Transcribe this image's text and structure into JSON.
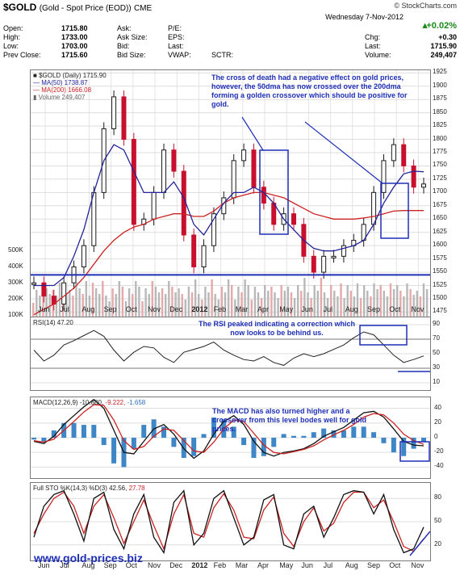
{
  "header": {
    "symbol": "$GOLD",
    "name": "(Gold - Spot Price (EOD))",
    "exchange": "CME",
    "source": "© StockCharts.com",
    "date": "Wednesday  7-Nov-2012",
    "change_pct": "+0.02%",
    "fields_left": [
      {
        "label": "Open:",
        "value": "1715.80"
      },
      {
        "label": "High:",
        "value": "1733.00"
      },
      {
        "label": "Low:",
        "value": "1703.00"
      },
      {
        "label": "Prev Close:",
        "value": "1715.60"
      }
    ],
    "fields_mid": [
      "Ask:",
      "Ask Size:",
      "Bid:",
      "Bid Size:"
    ],
    "fields_mid2": [
      "P/E:",
      "EPS:",
      "Last:",
      "VWAP:"
    ],
    "sctr": "SCTR:",
    "fields_right": [
      {
        "label": "Chg:",
        "value": "+0.30"
      },
      {
        "label": "Last:",
        "value": "1715.90"
      },
      {
        "label": "Volume:",
        "value": "249,407"
      }
    ]
  },
  "legend": {
    "price": "$GOLD (Daily) 1715.90",
    "ma50": "MA(50) 1738.87",
    "ma200": "MA(200) 1666.08",
    "volume": "Volume 249,407",
    "rsi": "RSI(14) 47.20",
    "macd_label": "MACD(12,26,9)",
    "macd_v1": "-10.880,",
    "macd_v2": "-9.222,",
    "macd_v3": "-1.658",
    "sto_label": "Full STO %K(14,3) %D(3)",
    "sto_v1": "42.56,",
    "sto_v2": "27.78"
  },
  "annotations": {
    "price": "The cross of death had a negative effect on gold prices, however, the 50dma has now crossed over the 200dma forming a golden crossover which should be positive for gold.",
    "rsi": "The RSI peaked indicating a correction which now looks to be behind us.",
    "macd": "The MACD has also turned higher and a crossover from this level bodes well for gold prices."
  },
  "site": "www.gold-prices.biz",
  "colors": {
    "up": "#1a1a1a",
    "down": "#c8102e",
    "ma50": "#23239a",
    "ma200": "#cc2222",
    "annot": "#1e2fb5"
  },
  "chart_data": {
    "type": "line",
    "x_labels": [
      "Jun",
      "Jul",
      "Aug",
      "Sep",
      "Oct",
      "Nov",
      "Dec",
      "2012",
      "Feb",
      "Mar",
      "Apr",
      "May",
      "Jun",
      "Jul",
      "Aug",
      "Sep",
      "Oct",
      "Nov"
    ],
    "price_yticks": [
      1475,
      1500,
      1525,
      1550,
      1575,
      1600,
      1625,
      1650,
      1675,
      1700,
      1725,
      1750,
      1775,
      1800,
      1825,
      1850,
      1875,
      1900,
      1925
    ],
    "volume_ticks": [
      "100K",
      "200K",
      "300K",
      "400K",
      "500K"
    ],
    "rsi_ticks": [
      10,
      30,
      50,
      70,
      90
    ],
    "macd_ticks": [
      -40,
      -20,
      0,
      20,
      40
    ],
    "sto_ticks": [
      20,
      50,
      80
    ],
    "price_ylim": [
      1465,
      1930
    ],
    "support_level": 1545,
    "series": [
      {
        "name": "$GOLD (Daily)",
        "values": [
          1530,
          1505,
          1490,
          1530,
          1560,
          1600,
          1700,
          1820,
          1880,
          1800,
          1640,
          1650,
          1700,
          1780,
          1740,
          1620,
          1560,
          1600,
          1660,
          1690,
          1760,
          1780,
          1710,
          1680,
          1640,
          1660,
          1640,
          1580,
          1550,
          1580,
          1580,
          1600,
          1610,
          1640,
          1700,
          1760,
          1790,
          1750,
          1710,
          1716
        ]
      },
      {
        "name": "MA(50)",
        "values": [
          1525,
          1525,
          1525,
          1540,
          1580,
          1630,
          1700,
          1760,
          1790,
          1780,
          1740,
          1700,
          1700,
          1700,
          1720,
          1690,
          1640,
          1620,
          1650,
          1680,
          1700,
          1700,
          1710,
          1700,
          1680,
          1650,
          1630,
          1610,
          1595,
          1590,
          1590,
          1595,
          1600,
          1610,
          1640,
          1680,
          1710,
          1735,
          1740,
          1739
        ]
      },
      {
        "name": "MA(200)",
        "values": [
          1470,
          1480,
          1490,
          1505,
          1520,
          1540,
          1565,
          1590,
          1610,
          1625,
          1635,
          1640,
          1650,
          1655,
          1660,
          1660,
          1655,
          1655,
          1665,
          1680,
          1690,
          1695,
          1700,
          1700,
          1695,
          1690,
          1680,
          1670,
          1660,
          1655,
          1650,
          1650,
          1650,
          1652,
          1655,
          1660,
          1665,
          1666,
          1666,
          1666
        ]
      }
    ],
    "rsi": [
      55,
      40,
      48,
      62,
      68,
      75,
      82,
      74,
      55,
      40,
      52,
      60,
      58,
      45,
      38,
      52,
      56,
      60,
      66,
      55,
      48,
      42,
      40,
      46,
      38,
      34,
      44,
      50,
      46,
      50,
      56,
      62,
      72,
      80,
      76,
      62,
      48,
      38,
      42,
      47
    ],
    "macd": [
      -5,
      -8,
      2,
      18,
      30,
      42,
      52,
      40,
      10,
      -20,
      -22,
      -5,
      12,
      18,
      5,
      -15,
      -28,
      -18,
      5,
      22,
      30,
      18,
      -5,
      -20,
      -25,
      -20,
      -18,
      -15,
      -8,
      2,
      8,
      14,
      24,
      34,
      36,
      28,
      12,
      -5,
      -10,
      -11
    ],
    "macd_signal": [
      -4,
      -6,
      -2,
      10,
      22,
      35,
      45,
      44,
      24,
      -4,
      -16,
      -12,
      2,
      12,
      10,
      -4,
      -18,
      -20,
      -6,
      12,
      24,
      22,
      6,
      -10,
      -20,
      -22,
      -19,
      -16,
      -11,
      -3,
      4,
      10,
      18,
      28,
      33,
      31,
      20,
      5,
      -4,
      -9
    ],
    "sto_k": [
      30,
      70,
      85,
      90,
      60,
      25,
      80,
      88,
      40,
      15,
      60,
      85,
      30,
      10,
      75,
      90,
      20,
      35,
      80,
      90,
      55,
      20,
      30,
      78,
      85,
      20,
      15,
      60,
      70,
      30,
      55,
      85,
      90,
      88,
      60,
      85,
      40,
      10,
      15,
      43
    ],
    "sto_d": [
      35,
      60,
      80,
      88,
      70,
      35,
      70,
      85,
      55,
      22,
      50,
      78,
      45,
      15,
      60,
      85,
      35,
      30,
      68,
      86,
      65,
      30,
      28,
      65,
      82,
      35,
      18,
      50,
      68,
      38,
      48,
      75,
      88,
      88,
      68,
      78,
      50,
      18,
      12,
      28
    ]
  }
}
